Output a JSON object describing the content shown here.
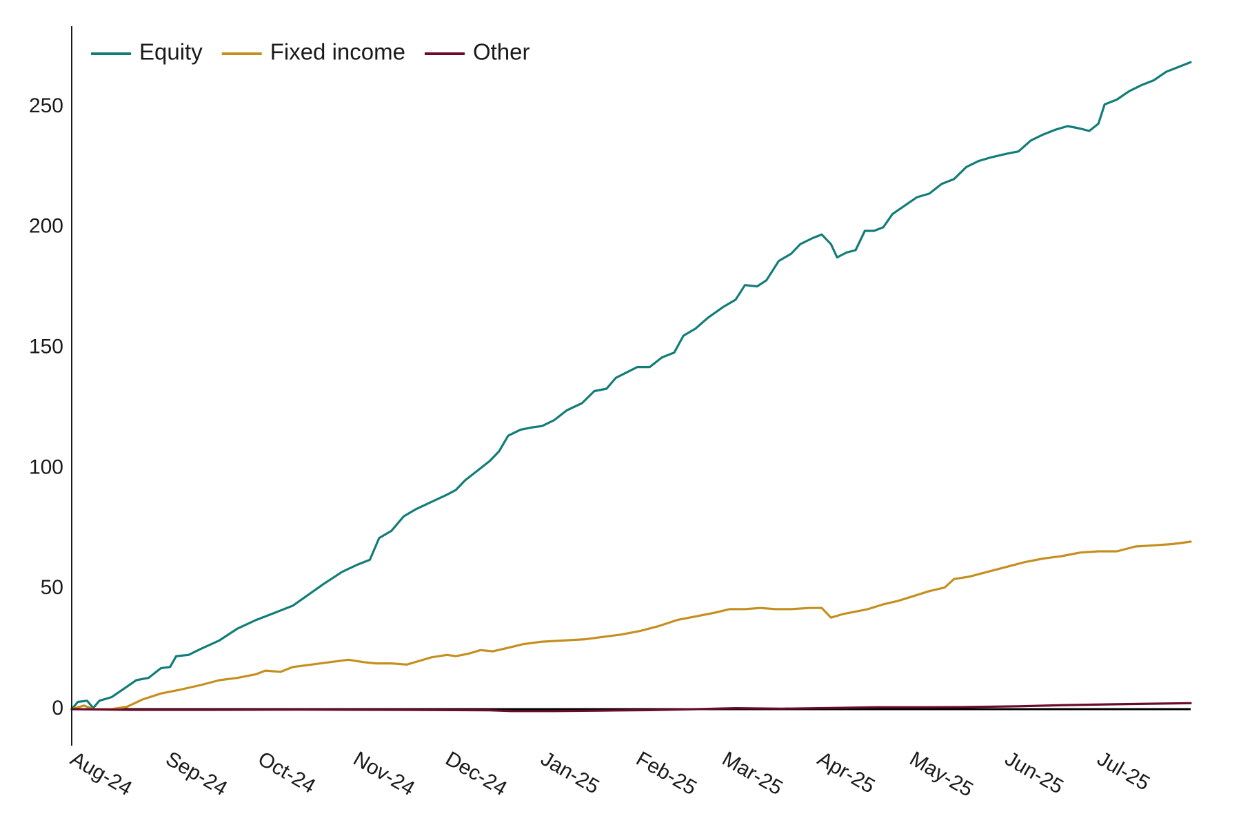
{
  "chart_data": {
    "type": "line",
    "title": "",
    "xlabel": "",
    "ylabel": "",
    "ylim": [
      -15,
      285
    ],
    "yticks": [
      0,
      50,
      100,
      150,
      200,
      250
    ],
    "x_tick_labels": [
      "Aug-24",
      "Sep-24",
      "Oct-24",
      "Nov-24",
      "Dec-24",
      "Jan-25",
      "Feb-25",
      "Mar-25",
      "Apr-25",
      "May-25",
      "Jun-25",
      "Jul-25"
    ],
    "x_tick_dates": [
      "2024-08-01",
      "2024-09-01",
      "2024-10-01",
      "2024-11-01",
      "2024-12-01",
      "2025-01-01",
      "2025-02-01",
      "2025-03-01",
      "2025-04-01",
      "2025-05-01",
      "2025-06-01",
      "2025-07-01"
    ],
    "x_range": [
      "2024-08-01",
      "2025-07-31"
    ],
    "grid": false,
    "zero_line": true,
    "legend_position": "top-left",
    "series": [
      {
        "name": "Equity",
        "color": "#127d78",
        "points": [
          [
            "2024-08-01",
            0
          ],
          [
            "2024-08-03",
            3
          ],
          [
            "2024-08-06",
            3.5
          ],
          [
            "2024-08-08",
            0.5
          ],
          [
            "2024-08-10",
            3.5
          ],
          [
            "2024-08-14",
            5
          ],
          [
            "2024-08-18",
            8.5
          ],
          [
            "2024-08-22",
            12
          ],
          [
            "2024-08-26",
            13
          ],
          [
            "2024-08-30",
            17
          ],
          [
            "2024-09-02",
            17.5
          ],
          [
            "2024-09-04",
            22
          ],
          [
            "2024-09-08",
            22.5
          ],
          [
            "2024-09-12",
            25
          ],
          [
            "2024-09-18",
            28.5
          ],
          [
            "2024-09-24",
            33.5
          ],
          [
            "2024-09-30",
            37
          ],
          [
            "2024-10-06",
            40
          ],
          [
            "2024-10-12",
            43
          ],
          [
            "2024-10-17",
            47.5
          ],
          [
            "2024-10-22",
            52
          ],
          [
            "2024-10-28",
            57
          ],
          [
            "2024-11-02",
            60
          ],
          [
            "2024-11-06",
            62
          ],
          [
            "2024-11-09",
            71
          ],
          [
            "2024-11-13",
            74
          ],
          [
            "2024-11-17",
            80
          ],
          [
            "2024-11-21",
            83
          ],
          [
            "2024-11-26",
            86
          ],
          [
            "2024-12-01",
            89
          ],
          [
            "2024-12-04",
            91
          ],
          [
            "2024-12-07",
            95
          ],
          [
            "2024-12-11",
            99
          ],
          [
            "2024-12-15",
            103
          ],
          [
            "2024-12-18",
            107
          ],
          [
            "2024-12-21",
            113.5
          ],
          [
            "2024-12-25",
            116
          ],
          [
            "2024-12-29",
            117
          ],
          [
            "2025-01-01",
            117.5
          ],
          [
            "2025-01-05",
            120
          ],
          [
            "2025-01-09",
            124
          ],
          [
            "2025-01-14",
            127
          ],
          [
            "2025-01-18",
            132
          ],
          [
            "2025-01-22",
            133
          ],
          [
            "2025-01-25",
            137.5
          ],
          [
            "2025-02-01",
            142
          ],
          [
            "2025-02-05",
            142
          ],
          [
            "2025-02-09",
            146
          ],
          [
            "2025-02-13",
            148
          ],
          [
            "2025-02-16",
            155
          ],
          [
            "2025-02-20",
            158
          ],
          [
            "2025-02-24",
            162.5
          ],
          [
            "2025-03-01",
            167
          ],
          [
            "2025-03-05",
            170
          ],
          [
            "2025-03-08",
            176
          ],
          [
            "2025-03-12",
            175.5
          ],
          [
            "2025-03-15",
            178
          ],
          [
            "2025-03-19",
            186
          ],
          [
            "2025-03-23",
            189
          ],
          [
            "2025-03-26",
            193
          ],
          [
            "2025-03-30",
            195.5
          ],
          [
            "2025-04-02",
            197
          ],
          [
            "2025-04-05",
            193
          ],
          [
            "2025-04-07",
            187.5
          ],
          [
            "2025-04-10",
            189.5
          ],
          [
            "2025-04-13",
            190.5
          ],
          [
            "2025-04-16",
            198.5
          ],
          [
            "2025-04-19",
            198.5
          ],
          [
            "2025-04-22",
            200
          ],
          [
            "2025-04-25",
            205.5
          ],
          [
            "2025-04-29",
            209
          ],
          [
            "2025-05-03",
            212.5
          ],
          [
            "2025-05-07",
            214
          ],
          [
            "2025-05-11",
            218
          ],
          [
            "2025-05-15",
            220
          ],
          [
            "2025-05-19",
            225
          ],
          [
            "2025-05-23",
            227.5
          ],
          [
            "2025-05-27",
            229
          ],
          [
            "2025-06-01",
            230.5
          ],
          [
            "2025-06-05",
            231.5
          ],
          [
            "2025-06-09",
            236
          ],
          [
            "2025-06-13",
            238.5
          ],
          [
            "2025-06-17",
            240.5
          ],
          [
            "2025-06-21",
            242
          ],
          [
            "2025-06-25",
            241
          ],
          [
            "2025-06-28",
            240
          ],
          [
            "2025-07-01",
            243
          ],
          [
            "2025-07-03",
            251
          ],
          [
            "2025-07-07",
            253
          ],
          [
            "2025-07-11",
            256.5
          ],
          [
            "2025-07-15",
            259
          ],
          [
            "2025-07-19",
            261
          ],
          [
            "2025-07-23",
            264.5
          ],
          [
            "2025-07-27",
            266.5
          ],
          [
            "2025-07-31",
            268.5
          ]
        ]
      },
      {
        "name": "Fixed income",
        "color": "#c48f1e",
        "points": [
          [
            "2024-08-01",
            0
          ],
          [
            "2024-08-05",
            1.5
          ],
          [
            "2024-08-08",
            0
          ],
          [
            "2024-08-14",
            0
          ],
          [
            "2024-08-19",
            1
          ],
          [
            "2024-08-24",
            4
          ],
          [
            "2024-08-30",
            6.5
          ],
          [
            "2024-09-05",
            8
          ],
          [
            "2024-09-12",
            10
          ],
          [
            "2024-09-18",
            12
          ],
          [
            "2024-09-24",
            13
          ],
          [
            "2024-09-30",
            14.5
          ],
          [
            "2024-10-03",
            16
          ],
          [
            "2024-10-08",
            15.5
          ],
          [
            "2024-10-12",
            17.5
          ],
          [
            "2024-10-18",
            18.5
          ],
          [
            "2024-10-24",
            19.5
          ],
          [
            "2024-10-30",
            20.5
          ],
          [
            "2024-11-04",
            19.5
          ],
          [
            "2024-11-08",
            19
          ],
          [
            "2024-11-13",
            19
          ],
          [
            "2024-11-18",
            18.5
          ],
          [
            "2024-11-22",
            20
          ],
          [
            "2024-11-26",
            21.5
          ],
          [
            "2024-12-01",
            22.5
          ],
          [
            "2024-12-04",
            22
          ],
          [
            "2024-12-08",
            23
          ],
          [
            "2024-12-12",
            24.5
          ],
          [
            "2024-12-16",
            24
          ],
          [
            "2024-12-21",
            25.5
          ],
          [
            "2024-12-26",
            27
          ],
          [
            "2025-01-01",
            28
          ],
          [
            "2025-01-08",
            28.5
          ],
          [
            "2025-01-15",
            29
          ],
          [
            "2025-01-21",
            30
          ],
          [
            "2025-01-27",
            31
          ],
          [
            "2025-02-02",
            32.5
          ],
          [
            "2025-02-08",
            34.5
          ],
          [
            "2025-02-14",
            37
          ],
          [
            "2025-02-20",
            38.5
          ],
          [
            "2025-02-26",
            40
          ],
          [
            "2025-03-03",
            41.5
          ],
          [
            "2025-03-08",
            41.5
          ],
          [
            "2025-03-13",
            42
          ],
          [
            "2025-03-18",
            41.5
          ],
          [
            "2025-03-23",
            41.5
          ],
          [
            "2025-03-29",
            42
          ],
          [
            "2025-04-02",
            42
          ],
          [
            "2025-04-05",
            38
          ],
          [
            "2025-04-09",
            39.5
          ],
          [
            "2025-04-13",
            40.5
          ],
          [
            "2025-04-17",
            41.5
          ],
          [
            "2025-04-22",
            43.5
          ],
          [
            "2025-04-27",
            45
          ],
          [
            "2025-05-02",
            47
          ],
          [
            "2025-05-07",
            49
          ],
          [
            "2025-05-12",
            50.5
          ],
          [
            "2025-05-15",
            54
          ],
          [
            "2025-05-20",
            55
          ],
          [
            "2025-05-26",
            57
          ],
          [
            "2025-06-01",
            59
          ],
          [
            "2025-06-07",
            61
          ],
          [
            "2025-06-13",
            62.5
          ],
          [
            "2025-06-19",
            63.5
          ],
          [
            "2025-06-25",
            65
          ],
          [
            "2025-07-01",
            65.5
          ],
          [
            "2025-07-07",
            65.5
          ],
          [
            "2025-07-13",
            67.5
          ],
          [
            "2025-07-19",
            68
          ],
          [
            "2025-07-25",
            68.5
          ],
          [
            "2025-07-31",
            69.5
          ]
        ]
      },
      {
        "name": "Other",
        "color": "#6b0a2c",
        "points": [
          [
            "2024-08-01",
            0
          ],
          [
            "2024-08-20",
            -0.3
          ],
          [
            "2024-09-15",
            -0.3
          ],
          [
            "2024-10-15",
            -0.2
          ],
          [
            "2024-11-15",
            -0.3
          ],
          [
            "2024-12-15",
            -0.5
          ],
          [
            "2024-12-22",
            -0.8
          ],
          [
            "2025-01-05",
            -0.8
          ],
          [
            "2025-01-20",
            -0.6
          ],
          [
            "2025-02-05",
            -0.4
          ],
          [
            "2025-02-20",
            0
          ],
          [
            "2025-03-05",
            0.4
          ],
          [
            "2025-03-20",
            0.2
          ],
          [
            "2025-04-05",
            0.5
          ],
          [
            "2025-04-20",
            0.8
          ],
          [
            "2025-05-05",
            0.8
          ],
          [
            "2025-05-20",
            0.9
          ],
          [
            "2025-06-05",
            1.2
          ],
          [
            "2025-06-20",
            1.7
          ],
          [
            "2025-07-05",
            2.0
          ],
          [
            "2025-07-20",
            2.3
          ],
          [
            "2025-07-31",
            2.5
          ]
        ]
      }
    ]
  }
}
